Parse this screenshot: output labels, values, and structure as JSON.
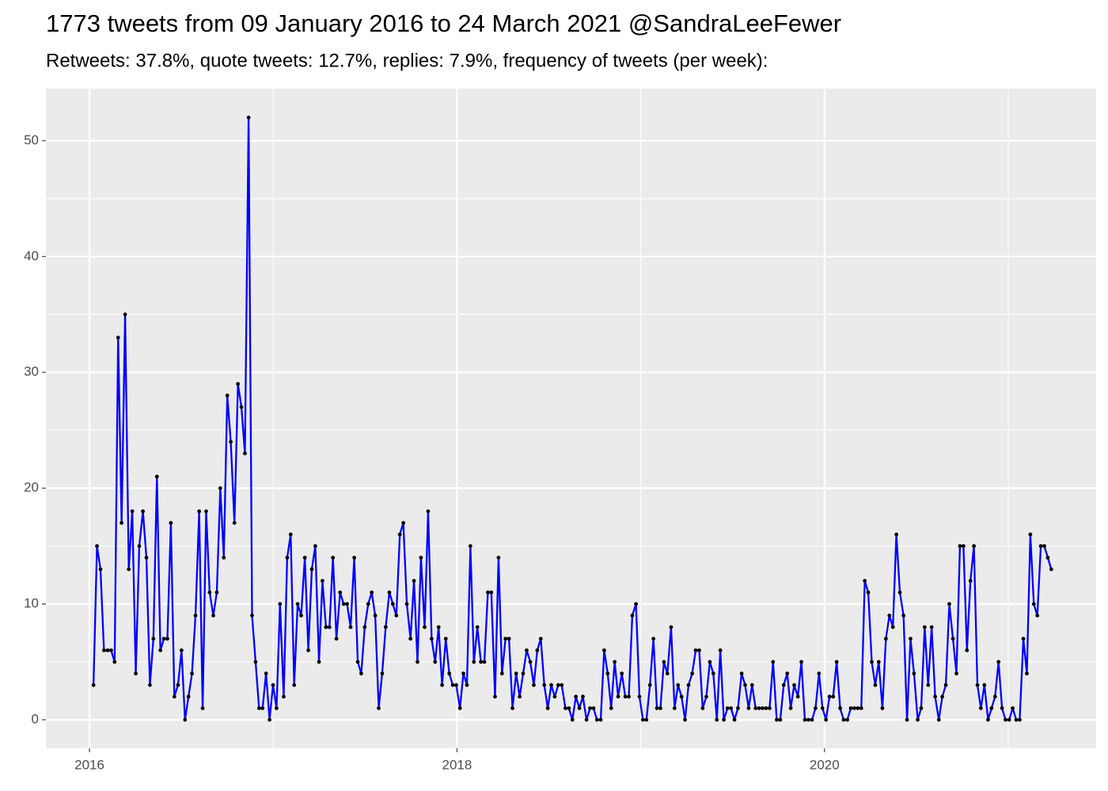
{
  "chart_data": {
    "type": "line",
    "title": "1773 tweets from 09 January 2016 to 24 March 2021 @SandraLeeFewer",
    "subtitle": "Retweets: 37.8%, quote tweets: 12.7%, replies: 7.9%, frequency of tweets (per week):",
    "x": [
      2016.022,
      2016.041,
      2016.06,
      2016.079,
      2016.099,
      2016.118,
      2016.137,
      2016.156,
      2016.175,
      2016.194,
      2016.214,
      2016.233,
      2016.252,
      2016.271,
      2016.291,
      2016.31,
      2016.329,
      2016.348,
      2016.367,
      2016.386,
      2016.405,
      2016.424,
      2016.443,
      2016.462,
      2016.482,
      2016.501,
      2016.52,
      2016.539,
      2016.558,
      2016.577,
      2016.597,
      2016.616,
      2016.635,
      2016.654,
      2016.674,
      2016.693,
      2016.712,
      2016.731,
      2016.75,
      2016.769,
      2016.789,
      2016.808,
      2016.827,
      2016.846,
      2016.866,
      2016.885,
      2016.904,
      2016.923,
      2016.942,
      2016.961,
      2016.98,
      2016.999,
      2017.018,
      2017.037,
      2017.057,
      2017.076,
      2017.095,
      2017.114,
      2017.133,
      2017.152,
      2017.172,
      2017.191,
      2017.21,
      2017.229,
      2017.249,
      2017.268,
      2017.287,
      2017.306,
      2017.325,
      2017.344,
      2017.364,
      2017.383,
      2017.402,
      2017.421,
      2017.441,
      2017.46,
      2017.479,
      2017.498,
      2017.517,
      2017.536,
      2017.555,
      2017.574,
      2017.593,
      2017.612,
      2017.632,
      2017.651,
      2017.67,
      2017.689,
      2017.708,
      2017.727,
      2017.747,
      2017.766,
      2017.785,
      2017.804,
      2017.824,
      2017.843,
      2017.862,
      2017.881,
      2017.9,
      2017.919,
      2017.939,
      2017.958,
      2017.977,
      2017.996,
      2018.016,
      2018.035,
      2018.054,
      2018.073,
      2018.092,
      2018.111,
      2018.13,
      2018.149,
      2018.168,
      2018.187,
      2018.207,
      2018.226,
      2018.245,
      2018.264,
      2018.283,
      2018.302,
      2018.322,
      2018.341,
      2018.36,
      2018.379,
      2018.399,
      2018.418,
      2018.437,
      2018.456,
      2018.475,
      2018.494,
      2018.513,
      2018.532,
      2018.551,
      2018.57,
      2018.59,
      2018.609,
      2018.628,
      2018.647,
      2018.666,
      2018.685,
      2018.705,
      2018.724,
      2018.743,
      2018.762,
      2018.782,
      2018.801,
      2018.82,
      2018.839,
      2018.858,
      2018.877,
      2018.897,
      2018.916,
      2018.935,
      2018.954,
      2018.974,
      2018.993,
      2019.012,
      2019.031,
      2019.05,
      2019.069,
      2019.088,
      2019.107,
      2019.126,
      2019.145,
      2019.165,
      2019.184,
      2019.203,
      2019.222,
      2019.241,
      2019.26,
      2019.28,
      2019.299,
      2019.318,
      2019.337,
      2019.357,
      2019.376,
      2019.395,
      2019.414,
      2019.433,
      2019.452,
      2019.472,
      2019.491,
      2019.51,
      2019.529,
      2019.549,
      2019.568,
      2019.587,
      2019.606,
      2019.625,
      2019.644,
      2019.663,
      2019.682,
      2019.701,
      2019.72,
      2019.74,
      2019.759,
      2019.778,
      2019.797,
      2019.816,
      2019.835,
      2019.855,
      2019.874,
      2019.893,
      2019.912,
      2019.932,
      2019.951,
      2019.97,
      2019.989,
      2020.008,
      2020.027,
      2020.047,
      2020.066,
      2020.085,
      2020.104,
      2020.124,
      2020.143,
      2020.162,
      2020.181,
      2020.2,
      2020.219,
      2020.238,
      2020.257,
      2020.276,
      2020.295,
      2020.315,
      2020.334,
      2020.353,
      2020.372,
      2020.391,
      2020.41,
      2020.43,
      2020.449,
      2020.468,
      2020.487,
      2020.507,
      2020.526,
      2020.545,
      2020.564,
      2020.583,
      2020.602,
      2020.622,
      2020.641,
      2020.66,
      2020.679,
      2020.699,
      2020.718,
      2020.737,
      2020.756,
      2020.775,
      2020.794,
      2020.813,
      2020.832,
      2020.851,
      2020.87,
      2020.89,
      2020.909,
      2020.928,
      2020.947,
      2020.966,
      2020.985,
      2021.005,
      2021.024,
      2021.043,
      2021.062,
      2021.082,
      2021.101,
      2021.12,
      2021.139,
      2021.158,
      2021.177,
      2021.196,
      2021.215,
      2021.234
    ],
    "values": [
      3,
      15,
      13,
      6,
      6,
      6,
      5,
      33,
      17,
      35,
      13,
      18,
      4,
      15,
      18,
      14,
      3,
      7,
      21,
      6,
      7,
      7,
      17,
      2,
      3,
      6,
      0,
      2,
      4,
      9,
      18,
      1,
      18,
      11,
      9,
      11,
      20,
      14,
      28,
      24,
      17,
      29,
      27,
      23,
      52,
      9,
      5,
      1,
      1,
      4,
      0,
      3,
      1,
      10,
      2,
      14,
      16,
      3,
      10,
      9,
      14,
      6,
      13,
      15,
      5,
      12,
      8,
      8,
      14,
      7,
      11,
      10,
      10,
      8,
      14,
      5,
      4,
      8,
      10,
      11,
      9,
      1,
      4,
      8,
      11,
      10,
      9,
      16,
      17,
      10,
      7,
      12,
      5,
      14,
      8,
      18,
      7,
      5,
      8,
      3,
      7,
      4,
      3,
      3,
      1,
      4,
      3,
      15,
      5,
      8,
      5,
      5,
      11,
      11,
      2,
      14,
      4,
      7,
      7,
      1,
      4,
      2,
      4,
      6,
      5,
      3,
      6,
      7,
      3,
      1,
      3,
      2,
      3,
      3,
      1,
      1,
      0,
      2,
      1,
      2,
      0,
      1,
      1,
      0,
      0,
      6,
      4,
      1,
      5,
      2,
      4,
      2,
      2,
      9,
      10,
      2,
      0,
      0,
      3,
      7,
      1,
      1,
      5,
      4,
      8,
      1,
      3,
      2,
      0,
      3,
      4,
      6,
      6,
      1,
      2,
      5,
      4,
      0,
      6,
      0,
      1,
      1,
      0,
      1,
      4,
      3,
      1,
      3,
      1,
      1,
      1,
      1,
      1,
      5,
      0,
      0,
      3,
      4,
      1,
      3,
      2,
      5,
      0,
      0,
      0,
      1,
      4,
      1,
      0,
      2,
      2,
      5,
      1,
      0,
      0,
      1,
      1,
      1,
      1,
      12,
      11,
      5,
      3,
      5,
      1,
      7,
      9,
      8,
      16,
      11,
      9,
      0,
      7,
      4,
      0,
      1,
      8,
      3,
      8,
      2,
      0,
      2,
      3,
      10,
      7,
      4,
      15,
      15,
      6,
      12,
      15,
      3,
      1,
      3,
      0,
      1,
      2,
      5,
      1,
      0,
      0,
      1,
      0,
      0,
      7,
      4,
      16,
      10,
      9,
      15,
      15,
      14,
      13
    ],
    "color": "#0000ff",
    "marker_color": "#000000",
    "xlim": [
      2015.763,
      2021.478
    ],
    "xticks": [
      2016,
      2018,
      2020
    ],
    "ylim": [
      -2.46,
      54.5
    ],
    "yticks": [
      0,
      10,
      20,
      30,
      40,
      50
    ],
    "grid": true,
    "minor_grid": true
  }
}
